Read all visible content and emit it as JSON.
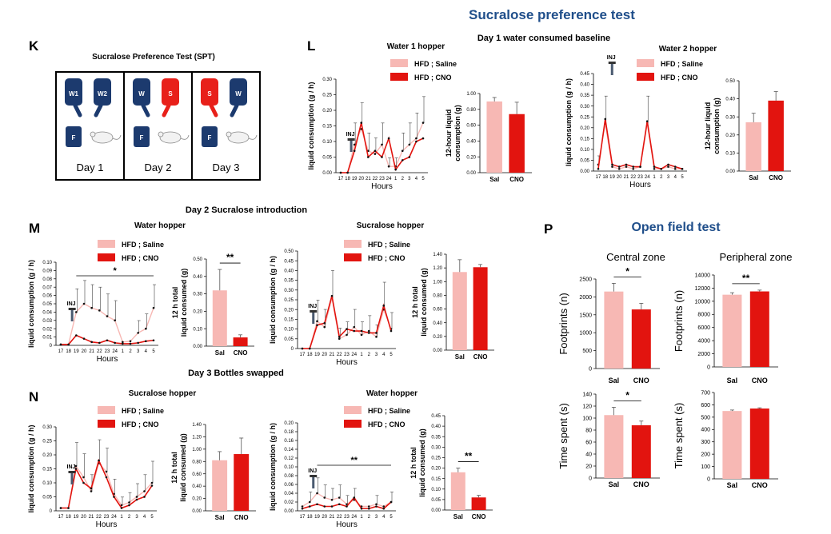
{
  "figure": {
    "title": "Sucralose preference test",
    "day1_title": "Day 1 water consumed baseline",
    "day2_title": "Day 2 Sucralose introduction",
    "day3_title": "Day 3 Bottles swapped",
    "open_field_title": "Open field test"
  },
  "panels": {
    "K": "K",
    "L": "L",
    "M": "M",
    "N": "N",
    "P": "P"
  },
  "spt": {
    "title": "Sucralose Preference Test (SPT)",
    "days": [
      {
        "label": "Day 1",
        "left": "W1",
        "right": "W2"
      },
      {
        "label": "Day 2",
        "left": "W",
        "right": "S"
      },
      {
        "label": "Day 3",
        "left": "S",
        "right": "W"
      }
    ],
    "food_label": "F",
    "colors": {
      "water": "#1c3a6e",
      "sucralose": "#e8201a"
    }
  },
  "legend": {
    "saline": "HFD ; Saline",
    "cno": "HFD ; CNO"
  },
  "colors": {
    "saline": "#f7b8b4",
    "cno": "#e2140f",
    "title_blue": "#1f4e8a"
  },
  "hours_label": "Hours",
  "inj_label": "INJ",
  "stars": {
    "one": "*",
    "two": "**"
  },
  "open_field": {
    "central": "Central zone",
    "peripheral": "Peripheral zone"
  },
  "chart_data": [
    {
      "id": "L1",
      "type": "line",
      "title": "Water 1 hopper",
      "xlabel": "Hours",
      "ylabel": "liquid consumption (g / h)",
      "categories": [
        "17",
        "18",
        "19",
        "20",
        "21",
        "22",
        "23",
        "24",
        "1",
        "2",
        "3",
        "4",
        "5"
      ],
      "ylim": [
        0,
        0.3
      ],
      "yticks": [
        "0.00",
        "0.05",
        "0.10",
        "0.15",
        "0.20",
        "0.25",
        "0.30"
      ],
      "series": [
        {
          "name": "HFD ; Saline",
          "values": [
            0,
            0,
            0.09,
            0.14,
            0.07,
            0.06,
            0.09,
            0.02,
            0.02,
            0.07,
            0.09,
            0.11,
            0.16
          ]
        },
        {
          "name": "HFD ; CNO",
          "values": [
            0,
            0,
            0.07,
            0.16,
            0.05,
            0.07,
            0.05,
            0.11,
            0.01,
            0.04,
            0.05,
            0.1,
            0.11
          ]
        }
      ]
    },
    {
      "id": "L1b",
      "type": "bar",
      "ylabel": "12-hour liquid consumption (g)",
      "categories": [
        "Sal",
        "CNO"
      ],
      "values": [
        0.9,
        0.74
      ],
      "errors": [
        0.05,
        0.15
      ],
      "ylim": [
        0,
        1.0
      ],
      "yticks": [
        "0.00",
        "0.20",
        "0.40",
        "0.60",
        "0.80",
        "1.00"
      ]
    },
    {
      "id": "L2",
      "type": "line",
      "title": "Water 2 hopper",
      "xlabel": "Hours",
      "ylabel": "liquid consumption (g / h)",
      "categories": [
        "17",
        "18",
        "19",
        "20",
        "21",
        "22",
        "23",
        "24",
        "1",
        "2",
        "3",
        "4",
        "5"
      ],
      "ylim": [
        0,
        0.45
      ],
      "yticks": [
        "0.00",
        "0.05",
        "0.10",
        "0.15",
        "0.20",
        "0.25",
        "0.30",
        "0.35",
        "0.40",
        "0.45"
      ],
      "series": [
        {
          "name": "HFD ; Saline",
          "values": [
            0.03,
            0.22,
            0.02,
            0.01,
            0.02,
            0.01,
            0.02,
            0.22,
            0.01,
            0.01,
            0.02,
            0.01,
            0.01
          ]
        },
        {
          "name": "HFD ; CNO",
          "values": [
            0.01,
            0.24,
            0.03,
            0.02,
            0.03,
            0.02,
            0.02,
            0.23,
            0.02,
            0.01,
            0.03,
            0.02,
            0.01
          ]
        }
      ]
    },
    {
      "id": "L2b",
      "type": "bar",
      "ylabel": "12-hour liquid consumption (g)",
      "categories": [
        "Sal",
        "CNO"
      ],
      "values": [
        0.27,
        0.39
      ],
      "errors": [
        0.05,
        0.05
      ],
      "ylim": [
        0,
        0.5
      ],
      "yticks": [
        "0.00",
        "0.10",
        "0.20",
        "0.30",
        "0.40",
        "0.50"
      ]
    },
    {
      "id": "M1",
      "type": "line",
      "title": "Water hopper",
      "xlabel": "Hours",
      "ylabel": "liquid consumption (g / h)",
      "categories": [
        "17",
        "18",
        "19",
        "20",
        "21",
        "22",
        "23",
        "24",
        "1",
        "2",
        "3",
        "4",
        "5"
      ],
      "ylim": [
        0,
        0.1
      ],
      "yticks": [
        "0",
        "0.01",
        "0.02",
        "0.03",
        "0.04",
        "0.05",
        "0.06",
        "0.07",
        "0.08",
        "0.09",
        "0.10"
      ],
      "series": [
        {
          "name": "HFD ; Saline",
          "values": [
            0.001,
            0.001,
            0.04,
            0.05,
            0.045,
            0.042,
            0.035,
            0.03,
            0.004,
            0.005,
            0.015,
            0.02,
            0.045
          ]
        },
        {
          "name": "HFD ; CNO",
          "values": [
            0.001,
            0.001,
            0.012,
            0.008,
            0.004,
            0.003,
            0.006,
            0.003,
            0.002,
            0.002,
            0.003,
            0.005,
            0.006
          ]
        }
      ]
    },
    {
      "id": "M1b",
      "type": "bar",
      "ylabel": "12 h total liquid consumed (g)",
      "categories": [
        "Sal",
        "CNO"
      ],
      "values": [
        0.32,
        0.05
      ],
      "errors": [
        0.12,
        0.015
      ],
      "ylim": [
        0,
        0.5
      ],
      "yticks": [
        "0.00",
        "0.10",
        "0.20",
        "0.30",
        "0.40",
        "0.50"
      ],
      "sig": "**"
    },
    {
      "id": "M2",
      "type": "line",
      "title": "Sucralose hopper",
      "xlabel": "Hours",
      "ylabel": "liquid consumption (g / h)",
      "categories": [
        "17",
        "18",
        "19",
        "20",
        "21",
        "22",
        "23",
        "24",
        "1",
        "2",
        "3",
        "4",
        "5"
      ],
      "ylim": [
        0,
        0.5
      ],
      "yticks": [
        "0",
        "0.05",
        "0.10",
        "0.15",
        "0.20",
        "0.25",
        "0.30",
        "0.35",
        "0.40",
        "0.45",
        "0.50"
      ],
      "series": [
        {
          "name": "HFD ; Saline",
          "values": [
            0,
            0,
            0.14,
            0.11,
            0.26,
            0.05,
            0.07,
            0.11,
            0.07,
            0.09,
            0.06,
            0.2,
            0.1
          ]
        },
        {
          "name": "HFD ; CNO",
          "values": [
            0,
            0,
            0.12,
            0.13,
            0.27,
            0.06,
            0.1,
            0.09,
            0.09,
            0.08,
            0.08,
            0.22,
            0.09
          ]
        }
      ]
    },
    {
      "id": "M2b",
      "type": "bar",
      "ylabel": "12 h total liquid consumed (g)",
      "categories": [
        "Sal",
        "CNO"
      ],
      "values": [
        1.14,
        1.21
      ],
      "errors": [
        0.18,
        0.04
      ],
      "ylim": [
        0,
        1.4
      ],
      "yticks": [
        "0.00",
        "0.20",
        "0.40",
        "0.60",
        "0.80",
        "1.00",
        "1.20",
        "1.40"
      ]
    },
    {
      "id": "N1",
      "type": "line",
      "title": "Sucralose hopper",
      "xlabel": "Hours",
      "ylabel": "liquid consumption (g / h)",
      "categories": [
        "17",
        "18",
        "19",
        "20",
        "21",
        "22",
        "23",
        "24",
        "1",
        "2",
        "3",
        "4",
        "5"
      ],
      "ylim": [
        0,
        0.3
      ],
      "yticks": [
        "0",
        "0.05",
        "0.10",
        "0.15",
        "0.20",
        "0.25",
        "0.30"
      ],
      "series": [
        {
          "name": "HFD ; Saline",
          "values": [
            0.01,
            0.01,
            0.16,
            0.12,
            0.07,
            0.17,
            0.14,
            0.06,
            0.02,
            0.03,
            0.05,
            0.07,
            0.1
          ]
        },
        {
          "name": "HFD ; CNO",
          "values": [
            0.01,
            0.01,
            0.15,
            0.1,
            0.08,
            0.18,
            0.12,
            0.05,
            0.01,
            0.02,
            0.04,
            0.05,
            0.09
          ]
        }
      ]
    },
    {
      "id": "N1b",
      "type": "bar",
      "ylabel": "12 h total liquid consumed (g)",
      "categories": [
        "Sal",
        "CNO"
      ],
      "values": [
        0.82,
        0.92
      ],
      "errors": [
        0.14,
        0.26
      ],
      "ylim": [
        0,
        1.4
      ],
      "yticks": [
        "0.00",
        "0.20",
        "0.40",
        "0.60",
        "0.80",
        "1.00",
        "1.20",
        "1.40"
      ]
    },
    {
      "id": "N2",
      "type": "line",
      "title": "Water hopper",
      "xlabel": "Hours",
      "ylabel": "liquid consumption (g / h)",
      "categories": [
        "17",
        "18",
        "19",
        "20",
        "21",
        "22",
        "23",
        "24",
        "1",
        "2",
        "3",
        "4",
        "5"
      ],
      "ylim": [
        0,
        0.2
      ],
      "yticks": [
        "0.00",
        "0.02",
        "0.04",
        "0.06",
        "0.08",
        "0.10",
        "0.12",
        "0.14",
        "0.16",
        "0.18",
        "0.20"
      ],
      "series": [
        {
          "name": "HFD ; Saline",
          "values": [
            0.01,
            0.02,
            0.04,
            0.03,
            0.025,
            0.03,
            0.015,
            0.025,
            0.01,
            0.01,
            0.015,
            0.01,
            0.02
          ]
        },
        {
          "name": "HFD ; CNO",
          "values": [
            0.005,
            0.01,
            0.015,
            0.01,
            0.01,
            0.015,
            0.01,
            0.03,
            0.005,
            0.005,
            0.01,
            0.005,
            0.02
          ]
        }
      ]
    },
    {
      "id": "N2b",
      "type": "bar",
      "ylabel": "12 h total liquid consumed (g)",
      "categories": [
        "Sal",
        "CNO"
      ],
      "values": [
        0.18,
        0.06
      ],
      "errors": [
        0.02,
        0.01
      ],
      "ylim": [
        0,
        0.45
      ],
      "yticks": [
        "0.00",
        "0.05",
        "0.10",
        "0.15",
        "0.20",
        "0.25",
        "0.30",
        "0.35",
        "0.40",
        "0.45"
      ],
      "sig": "**"
    },
    {
      "id": "P1",
      "type": "bar",
      "ylabel": "Footprints (n)",
      "categories": [
        "Sal",
        "CNO"
      ],
      "values": [
        2150,
        1650
      ],
      "errors": [
        230,
        170
      ],
      "ylim": [
        0,
        2500
      ],
      "yticks": [
        "0",
        "500",
        "1000",
        "1500",
        "2000",
        "2500"
      ],
      "sig": "*"
    },
    {
      "id": "P2",
      "type": "bar",
      "ylabel": "Footprints (n)",
      "categories": [
        "Sal",
        "CNO"
      ],
      "values": [
        11000,
        11500
      ],
      "errors": [
        300,
        200
      ],
      "ylim": [
        0,
        14000
      ],
      "yticks": [
        "0",
        "2000",
        "4000",
        "6000",
        "8000",
        "10000",
        "12000",
        "14000"
      ],
      "sig": "**"
    },
    {
      "id": "P3",
      "type": "bar",
      "ylabel": "Time spent (s)",
      "categories": [
        "Sal",
        "CNO"
      ],
      "values": [
        105,
        88
      ],
      "errors": [
        13,
        7
      ],
      "ylim": [
        0,
        140
      ],
      "yticks": [
        "0",
        "20",
        "40",
        "60",
        "80",
        "100",
        "120",
        "140"
      ],
      "sig": "*"
    },
    {
      "id": "P4",
      "type": "bar",
      "ylabel": "Time spent (s)",
      "categories": [
        "Sal",
        "CNO"
      ],
      "values": [
        550,
        570
      ],
      "errors": [
        8,
        6
      ],
      "ylim": [
        0,
        700
      ],
      "yticks": [
        "0",
        "100",
        "200",
        "300",
        "400",
        "500",
        "600",
        "700"
      ]
    }
  ]
}
